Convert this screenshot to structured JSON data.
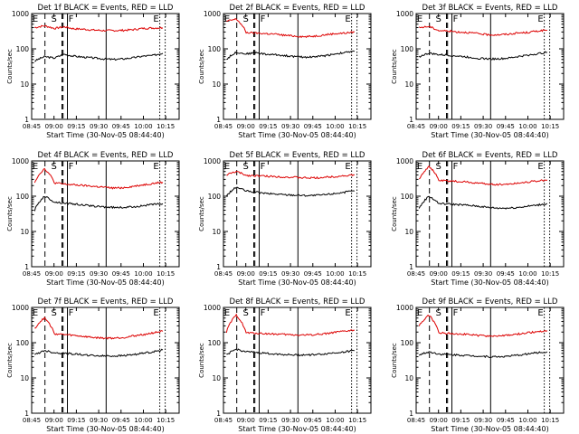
{
  "figure": {
    "colors": {
      "events": "#000000",
      "lld": "#dd0000",
      "axes": "#000000"
    }
  },
  "chart_data": [
    {
      "type": "line",
      "title": "Det 1f BLACK = Events, RED = LLD",
      "xlabel": "Start Time (30-Nov-05 08:44:40)",
      "ylabel": "Counts/sec",
      "yscale": "log",
      "ylim": [
        1,
        1000
      ],
      "xticks": [
        "08:45",
        "09:00",
        "09:15",
        "09:30",
        "09:45",
        "10:00",
        "10:15"
      ],
      "yticks": [
        "1",
        "10",
        "100",
        "1000"
      ],
      "markers": {
        "E": [
          "08:45",
          "10:11"
        ],
        "S": "09:00",
        "F": "09:09"
      },
      "series": [
        {
          "name": "Events",
          "color": "#000000",
          "values": [
            45,
            60,
            55,
            70,
            62,
            58,
            55,
            52,
            50,
            52,
            56,
            62,
            65,
            75
          ]
        },
        {
          "name": "LLD",
          "color": "#dd0000",
          "values": [
            400,
            450,
            380,
            420,
            370,
            360,
            340,
            330,
            330,
            335,
            350,
            380,
            390,
            395
          ]
        }
      ]
    },
    {
      "type": "line",
      "title": "Det 2f BLACK = Events, RED = LLD",
      "xlabel": "Start Time (30-Nov-05 08:44:40)",
      "ylabel": "Counts/sec",
      "yscale": "log",
      "ylim": [
        1,
        1000
      ],
      "xticks": [
        "08:45",
        "09:00",
        "09:15",
        "09:30",
        "09:45",
        "10:00",
        "10:15"
      ],
      "yticks": [
        "1",
        "10",
        "100",
        "1000"
      ],
      "markers": {
        "E": [
          "08:45",
          "10:11"
        ],
        "S": "09:00",
        "F": "09:09"
      },
      "series": [
        {
          "name": "Events",
          "color": "#000000",
          "values": [
            50,
            80,
            72,
            78,
            70,
            68,
            64,
            60,
            58,
            60,
            64,
            72,
            78,
            85
          ]
        },
        {
          "name": "LLD",
          "color": "#dd0000",
          "values": [
            600,
            700,
            290,
            280,
            270,
            260,
            240,
            230,
            220,
            230,
            250,
            270,
            280,
            300
          ]
        }
      ]
    },
    {
      "type": "line",
      "title": "Det 3f BLACK = Events, RED = LLD",
      "xlabel": "Start Time (30-Nov-05 08:44:40)",
      "ylabel": "Counts/sec",
      "yscale": "log",
      "ylim": [
        1,
        1000
      ],
      "xticks": [
        "08:45",
        "09:00",
        "09:15",
        "09:30",
        "09:45",
        "10:00",
        "10:15"
      ],
      "yticks": [
        "1",
        "10",
        "100",
        "1000"
      ],
      "markers": {
        "E": [
          "08:45",
          "10:11"
        ],
        "S": "09:00",
        "F": "09:09"
      },
      "series": [
        {
          "name": "Events",
          "color": "#000000",
          "values": [
            60,
            75,
            68,
            66,
            62,
            58,
            54,
            52,
            52,
            54,
            60,
            66,
            72,
            80
          ]
        },
        {
          "name": "LLD",
          "color": "#dd0000",
          "values": [
            400,
            430,
            330,
            320,
            300,
            290,
            270,
            250,
            250,
            260,
            280,
            290,
            320,
            340
          ]
        }
      ]
    },
    {
      "type": "line",
      "title": "Det 4f BLACK = Events, RED = LLD",
      "xlabel": "Start Time (30-Nov-05 08:44:40)",
      "ylabel": "Counts/sec",
      "yscale": "log",
      "ylim": [
        1,
        1000
      ],
      "xticks": [
        "08:45",
        "09:00",
        "09:15",
        "09:30",
        "09:45",
        "10:00",
        "10:15"
      ],
      "yticks": [
        "1",
        "10",
        "100",
        "1000"
      ],
      "markers": {
        "E": [
          "08:45",
          "10:11"
        ],
        "S": "09:00",
        "F": "09:09"
      },
      "series": [
        {
          "name": "Events",
          "color": "#000000",
          "values": [
            40,
            100,
            68,
            64,
            60,
            56,
            52,
            50,
            48,
            48,
            50,
            54,
            58,
            62
          ]
        },
        {
          "name": "LLD",
          "color": "#dd0000",
          "values": [
            250,
            600,
            240,
            220,
            210,
            200,
            190,
            180,
            170,
            175,
            190,
            210,
            230,
            250
          ]
        }
      ]
    },
    {
      "type": "line",
      "title": "Det 5f BLACK = Events, RED = LLD",
      "xlabel": "Start Time (30-Nov-05 08:44:40)",
      "ylabel": "Counts/sec",
      "yscale": "log",
      "ylim": [
        1,
        1000
      ],
      "xticks": [
        "08:45",
        "09:00",
        "09:15",
        "09:30",
        "09:45",
        "10:00",
        "10:15"
      ],
      "yticks": [
        "1",
        "10",
        "100",
        "1000"
      ],
      "markers": {
        "E": [
          "08:45",
          "10:11"
        ],
        "S": "09:00",
        "F": "09:09"
      },
      "series": [
        {
          "name": "Events",
          "color": "#000000",
          "values": [
            100,
            180,
            140,
            130,
            120,
            115,
            110,
            108,
            105,
            105,
            110,
            120,
            130,
            140
          ]
        },
        {
          "name": "LLD",
          "color": "#dd0000",
          "values": [
            400,
            500,
            390,
            380,
            370,
            360,
            350,
            340,
            330,
            330,
            345,
            360,
            380,
            400
          ]
        }
      ]
    },
    {
      "type": "line",
      "title": "Det 6f BLACK = Events, RED = LLD",
      "xlabel": "Start Time (30-Nov-05 08:44:40)",
      "ylabel": "Counts/sec",
      "yscale": "log",
      "ylim": [
        1,
        1000
      ],
      "xticks": [
        "08:45",
        "09:00",
        "09:15",
        "09:30",
        "09:45",
        "10:00",
        "10:15"
      ],
      "yticks": [
        "1",
        "10",
        "100",
        "1000"
      ],
      "markers": {
        "E": [
          "08:45",
          "10:11"
        ],
        "S": "09:00",
        "F": "09:09"
      },
      "series": [
        {
          "name": "Events",
          "color": "#000000",
          "values": [
            45,
            100,
            62,
            60,
            58,
            55,
            52,
            48,
            46,
            46,
            48,
            52,
            56,
            62
          ]
        },
        {
          "name": "LLD",
          "color": "#dd0000",
          "values": [
            300,
            700,
            280,
            270,
            260,
            250,
            235,
            220,
            215,
            220,
            235,
            255,
            270,
            290
          ]
        }
      ]
    },
    {
      "type": "line",
      "title": "Det 7f BLACK = Events, RED = LLD",
      "xlabel": "Start Time (30-Nov-05 08:44:40)",
      "ylabel": "Counts/sec",
      "yscale": "log",
      "ylim": [
        1,
        1000
      ],
      "xticks": [
        "08:45",
        "09:00",
        "09:15",
        "09:30",
        "09:45",
        "10:00",
        "10:15"
      ],
      "yticks": [
        "1",
        "10",
        "100",
        "1000"
      ],
      "markers": {
        "E": [
          "08:45",
          "10:11"
        ],
        "S": "09:00",
        "F": "09:09"
      },
      "series": [
        {
          "name": "Events",
          "color": "#000000",
          "values": [
            45,
            60,
            52,
            50,
            48,
            45,
            43,
            42,
            42,
            43,
            46,
            50,
            55,
            62
          ]
        },
        {
          "name": "LLD",
          "color": "#dd0000",
          "values": [
            250,
            500,
            180,
            170,
            160,
            150,
            140,
            135,
            135,
            140,
            155,
            170,
            190,
            210
          ]
        }
      ]
    },
    {
      "type": "line",
      "title": "Det 8f BLACK = Events, RED = LLD",
      "xlabel": "Start Time (30-Nov-05 08:44:40)",
      "ylabel": "Counts/sec",
      "yscale": "log",
      "ylim": [
        1,
        1000
      ],
      "xticks": [
        "08:45",
        "09:00",
        "09:15",
        "09:30",
        "09:45",
        "10:00",
        "10:15"
      ],
      "yticks": [
        "1",
        "10",
        "100",
        "1000"
      ],
      "markers": {
        "E": [
          "08:45",
          "10:11"
        ],
        "S": "09:00",
        "F": "09:09"
      },
      "series": [
        {
          "name": "Events",
          "color": "#000000",
          "values": [
            45,
            65,
            55,
            53,
            50,
            48,
            46,
            45,
            45,
            46,
            48,
            52,
            55,
            60
          ]
        },
        {
          "name": "LLD",
          "color": "#dd0000",
          "values": [
            200,
            600,
            190,
            185,
            180,
            175,
            170,
            165,
            165,
            170,
            180,
            195,
            210,
            225
          ]
        }
      ]
    },
    {
      "type": "line",
      "title": "Det 9f BLACK = Events, RED = LLD",
      "xlabel": "Start Time (30-Nov-05 08:44:40)",
      "ylabel": "Counts/sec",
      "yscale": "log",
      "ylim": [
        1,
        1000
      ],
      "xticks": [
        "08:45",
        "09:00",
        "09:15",
        "09:30",
        "09:45",
        "10:00",
        "10:15"
      ],
      "yticks": [
        "1",
        "10",
        "100",
        "1000"
      ],
      "markers": {
        "E": [
          "08:45",
          "10:11"
        ],
        "S": "09:00",
        "F": "09:09"
      },
      "series": [
        {
          "name": "Events",
          "color": "#000000",
          "values": [
            45,
            55,
            48,
            46,
            45,
            43,
            42,
            40,
            40,
            41,
            44,
            48,
            52,
            55
          ]
        },
        {
          "name": "LLD",
          "color": "#dd0000",
          "values": [
            300,
            600,
            190,
            185,
            180,
            170,
            160,
            155,
            155,
            160,
            175,
            190,
            205,
            220
          ]
        }
      ]
    }
  ]
}
